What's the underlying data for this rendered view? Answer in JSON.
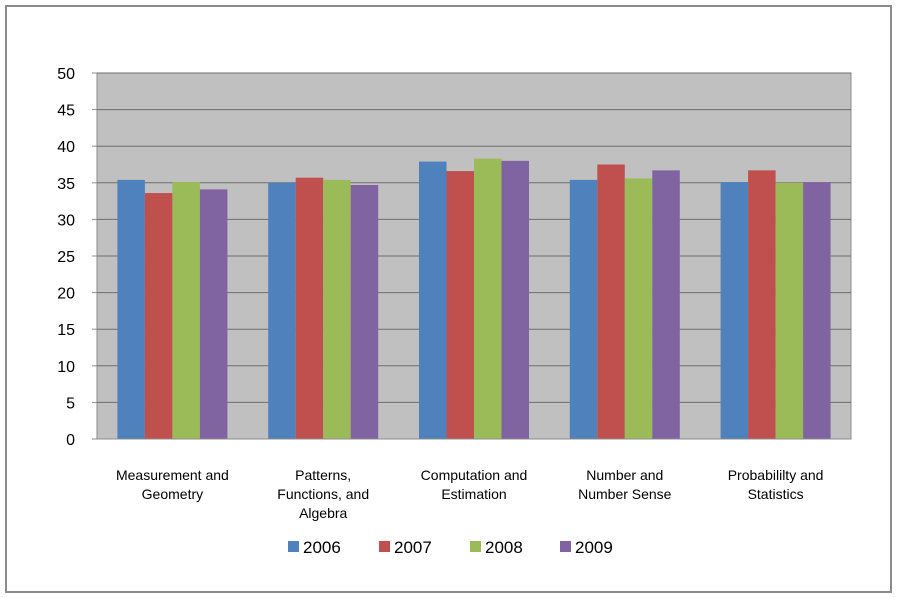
{
  "chart_data": {
    "type": "bar",
    "categories": [
      [
        "Measurement and",
        "Geometry"
      ],
      [
        "Patterns,",
        "Functions, and",
        "Algebra"
      ],
      [
        "Computation and",
        "Estimation"
      ],
      [
        "Number and",
        "Number Sense"
      ],
      [
        "Probabililty and",
        "Statistics"
      ]
    ],
    "series": [
      {
        "name": "2006",
        "color": "#4f81bd",
        "values": [
          35.4,
          35.0,
          37.9,
          35.4,
          35.1
        ]
      },
      {
        "name": "2007",
        "color": "#c0504d",
        "values": [
          33.6,
          35.7,
          36.6,
          37.5,
          36.7
        ]
      },
      {
        "name": "2008",
        "color": "#9bbb59",
        "values": [
          35.1,
          35.4,
          38.3,
          35.6,
          35.0
        ]
      },
      {
        "name": "2009",
        "color": "#8064a2",
        "values": [
          34.1,
          34.7,
          38.0,
          36.7,
          35.1
        ]
      }
    ],
    "yticks": [
      "0",
      "5",
      "10",
      "15",
      "20",
      "25",
      "30",
      "35",
      "40",
      "45",
      "50"
    ],
    "ylim": [
      0,
      50
    ],
    "grid": true,
    "plot_background": "#c0c0c0",
    "legend_position": "bottom"
  }
}
